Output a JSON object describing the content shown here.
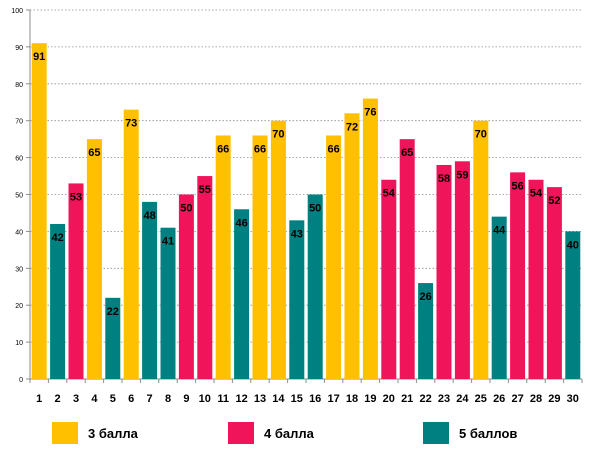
{
  "chart_data": {
    "type": "bar",
    "categories": [
      "1",
      "2",
      "3",
      "4",
      "5",
      "6",
      "7",
      "8",
      "9",
      "10",
      "11",
      "12",
      "13",
      "14",
      "15",
      "16",
      "17",
      "18",
      "19",
      "20",
      "21",
      "22",
      "23",
      "24",
      "25",
      "26",
      "27",
      "28",
      "29",
      "30"
    ],
    "values": [
      91,
      42,
      53,
      65,
      22,
      73,
      48,
      41,
      50,
      55,
      66,
      46,
      66,
      70,
      43,
      50,
      66,
      72,
      76,
      54,
      65,
      26,
      58,
      59,
      70,
      44,
      56,
      54,
      52,
      40
    ],
    "groups": [
      "3 балла",
      "5 баллов",
      "4 балла",
      "3 балла",
      "5 баллов",
      "3 балла",
      "5 баллов",
      "5 баллов",
      "4 балла",
      "4 балла",
      "3 балла",
      "5 баллов",
      "3 балла",
      "3 балла",
      "5 баллов",
      "5 баллов",
      "3 балла",
      "3 балла",
      "3 балла",
      "4 балла",
      "4 балла",
      "5 баллов",
      "4 балла",
      "4 балла",
      "3 балла",
      "5 баллов",
      "4 балла",
      "4 балла",
      "4 балла",
      "5 баллов"
    ],
    "ylim": [
      0,
      100
    ],
    "yticks": [
      0,
      10,
      20,
      30,
      40,
      50,
      60,
      70,
      80,
      90,
      100
    ],
    "grid": true,
    "legend_position": "bottom",
    "series": [
      {
        "name": "3 балла",
        "color": "#FFC000"
      },
      {
        "name": "4 балла",
        "color": "#F0145A"
      },
      {
        "name": "5 баллов",
        "color": "#008080"
      }
    ],
    "title": "",
    "xlabel": "",
    "ylabel": ""
  }
}
